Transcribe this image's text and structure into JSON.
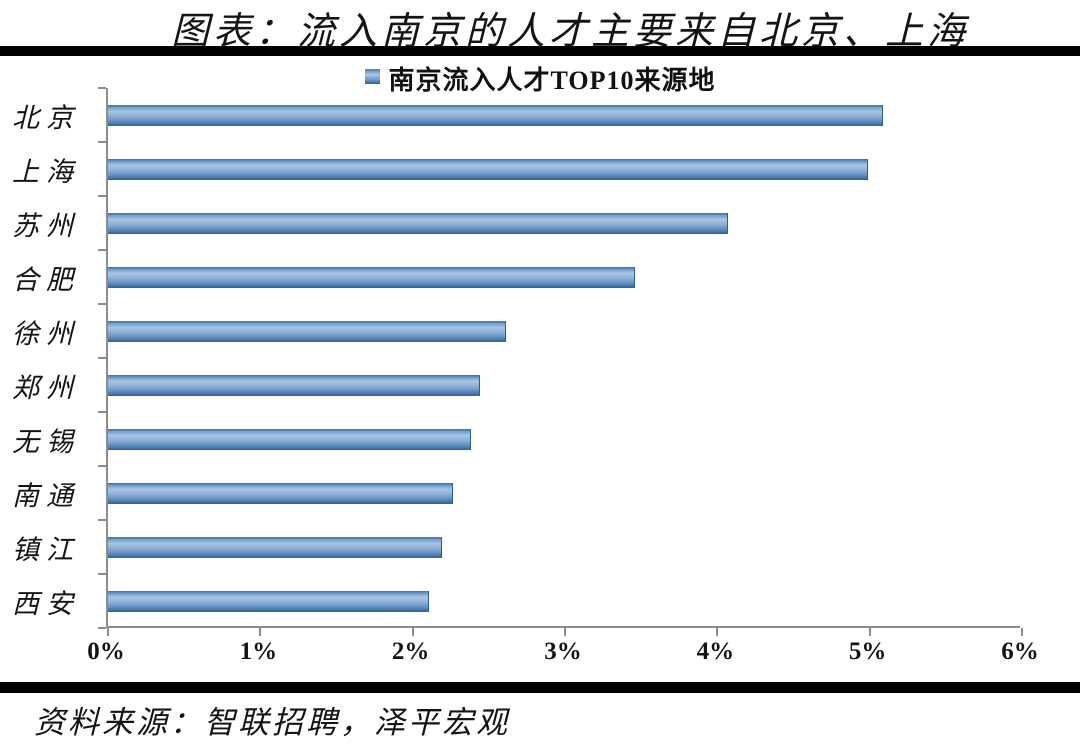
{
  "page": {
    "title": "图表：流入南京的人才主要来自北京、上海",
    "source": "资料来源：智联招聘，泽平宏观"
  },
  "chart_data": {
    "type": "bar",
    "orientation": "horizontal",
    "title": "南京流入人才TOP10来源地",
    "legend_position": "top-center",
    "categories": [
      "北京",
      "上海",
      "苏州",
      "合肥",
      "徐州",
      "郑州",
      "无锡",
      "南通",
      "镇江",
      "西安"
    ],
    "values": [
      5.1,
      5.0,
      4.08,
      3.47,
      2.62,
      2.45,
      2.39,
      2.27,
      2.2,
      2.11
    ],
    "unit": "%",
    "xlabel": "",
    "ylabel": "",
    "xlim": [
      0,
      6
    ],
    "x_ticks": [
      "0%",
      "1%",
      "2%",
      "3%",
      "4%",
      "5%",
      "6%"
    ],
    "grid": false,
    "colors": {
      "bar_main": "#6f9cc9",
      "bar_edge_dark": "#2d5f92",
      "bar_highlight": "#a9c6e4",
      "axis": "#8c8c8c",
      "text": "#141414",
      "rule": "#000000"
    }
  }
}
